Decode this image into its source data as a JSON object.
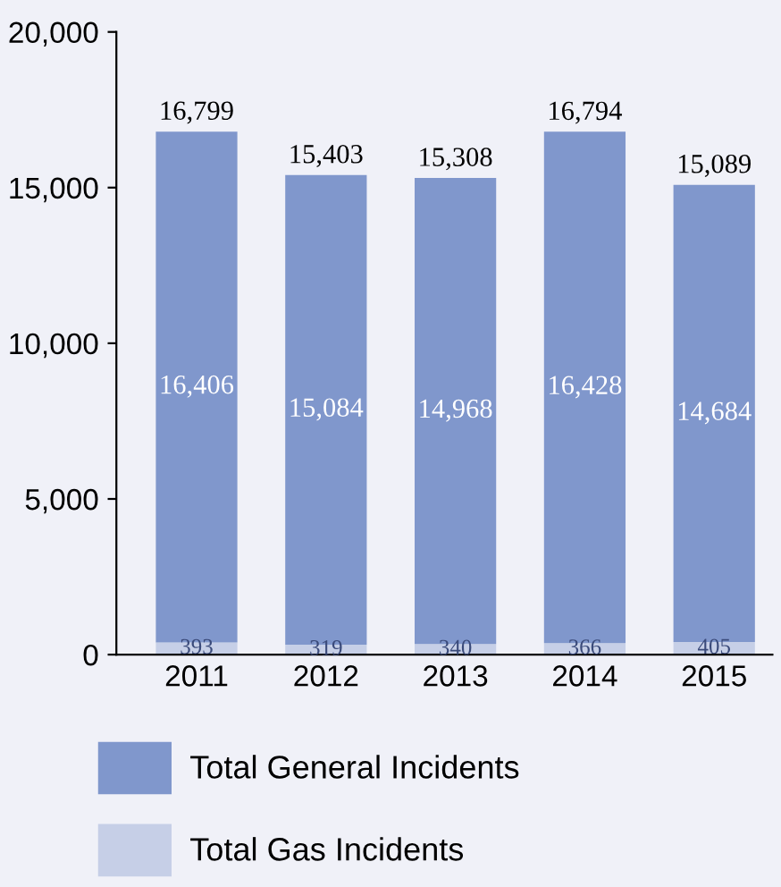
{
  "chart_data": {
    "type": "bar",
    "stacked": true,
    "categories": [
      "2011",
      "2012",
      "2013",
      "2014",
      "2015"
    ],
    "series": [
      {
        "name": "Total Gas Incidents",
        "color": "#c6cfe7",
        "values": [
          393,
          319,
          340,
          366,
          405
        ],
        "value_labels": [
          "393",
          "319",
          "340",
          "366",
          "405"
        ]
      },
      {
        "name": "Total General Incidents",
        "color": "#8097cc",
        "values": [
          16406,
          15084,
          14968,
          16428,
          14684
        ],
        "value_labels": [
          "16,406",
          "15,084",
          "14,968",
          "16,428",
          "14,684"
        ]
      }
    ],
    "totals": [
      "16,799",
      "15,403",
      "15,308",
      "16,794",
      "15,089"
    ],
    "ylim": [
      0,
      20000
    ],
    "yticks": [
      {
        "value": 0,
        "label": "0"
      },
      {
        "value": 5000,
        "label": "5,000"
      },
      {
        "value": 10000,
        "label": "10,000"
      },
      {
        "value": 15000,
        "label": "15,000"
      },
      {
        "value": 20000,
        "label": "20,000"
      }
    ],
    "grid": false,
    "legend": "bottom"
  }
}
